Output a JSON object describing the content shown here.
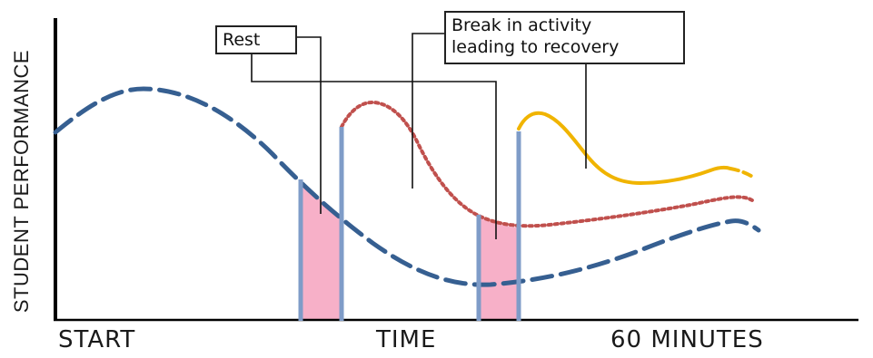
{
  "axes": {
    "y_label": "STUDENT PERFORMANCE",
    "x_labels": {
      "start": "START",
      "middle": "TIME",
      "end": "60 MINUTES"
    }
  },
  "callouts": {
    "rest": "Rest",
    "break_line1": "Break in activity",
    "break_line2": "leading to recovery"
  },
  "colors": {
    "baseline_curve": "#365f91",
    "recovery_curve_1": "#c0504d",
    "recovery_curve_2": "#f0b400",
    "rest_shading": "#f7b0c8",
    "rest_markers": "#7f9cc8",
    "axis": "#000000"
  }
}
